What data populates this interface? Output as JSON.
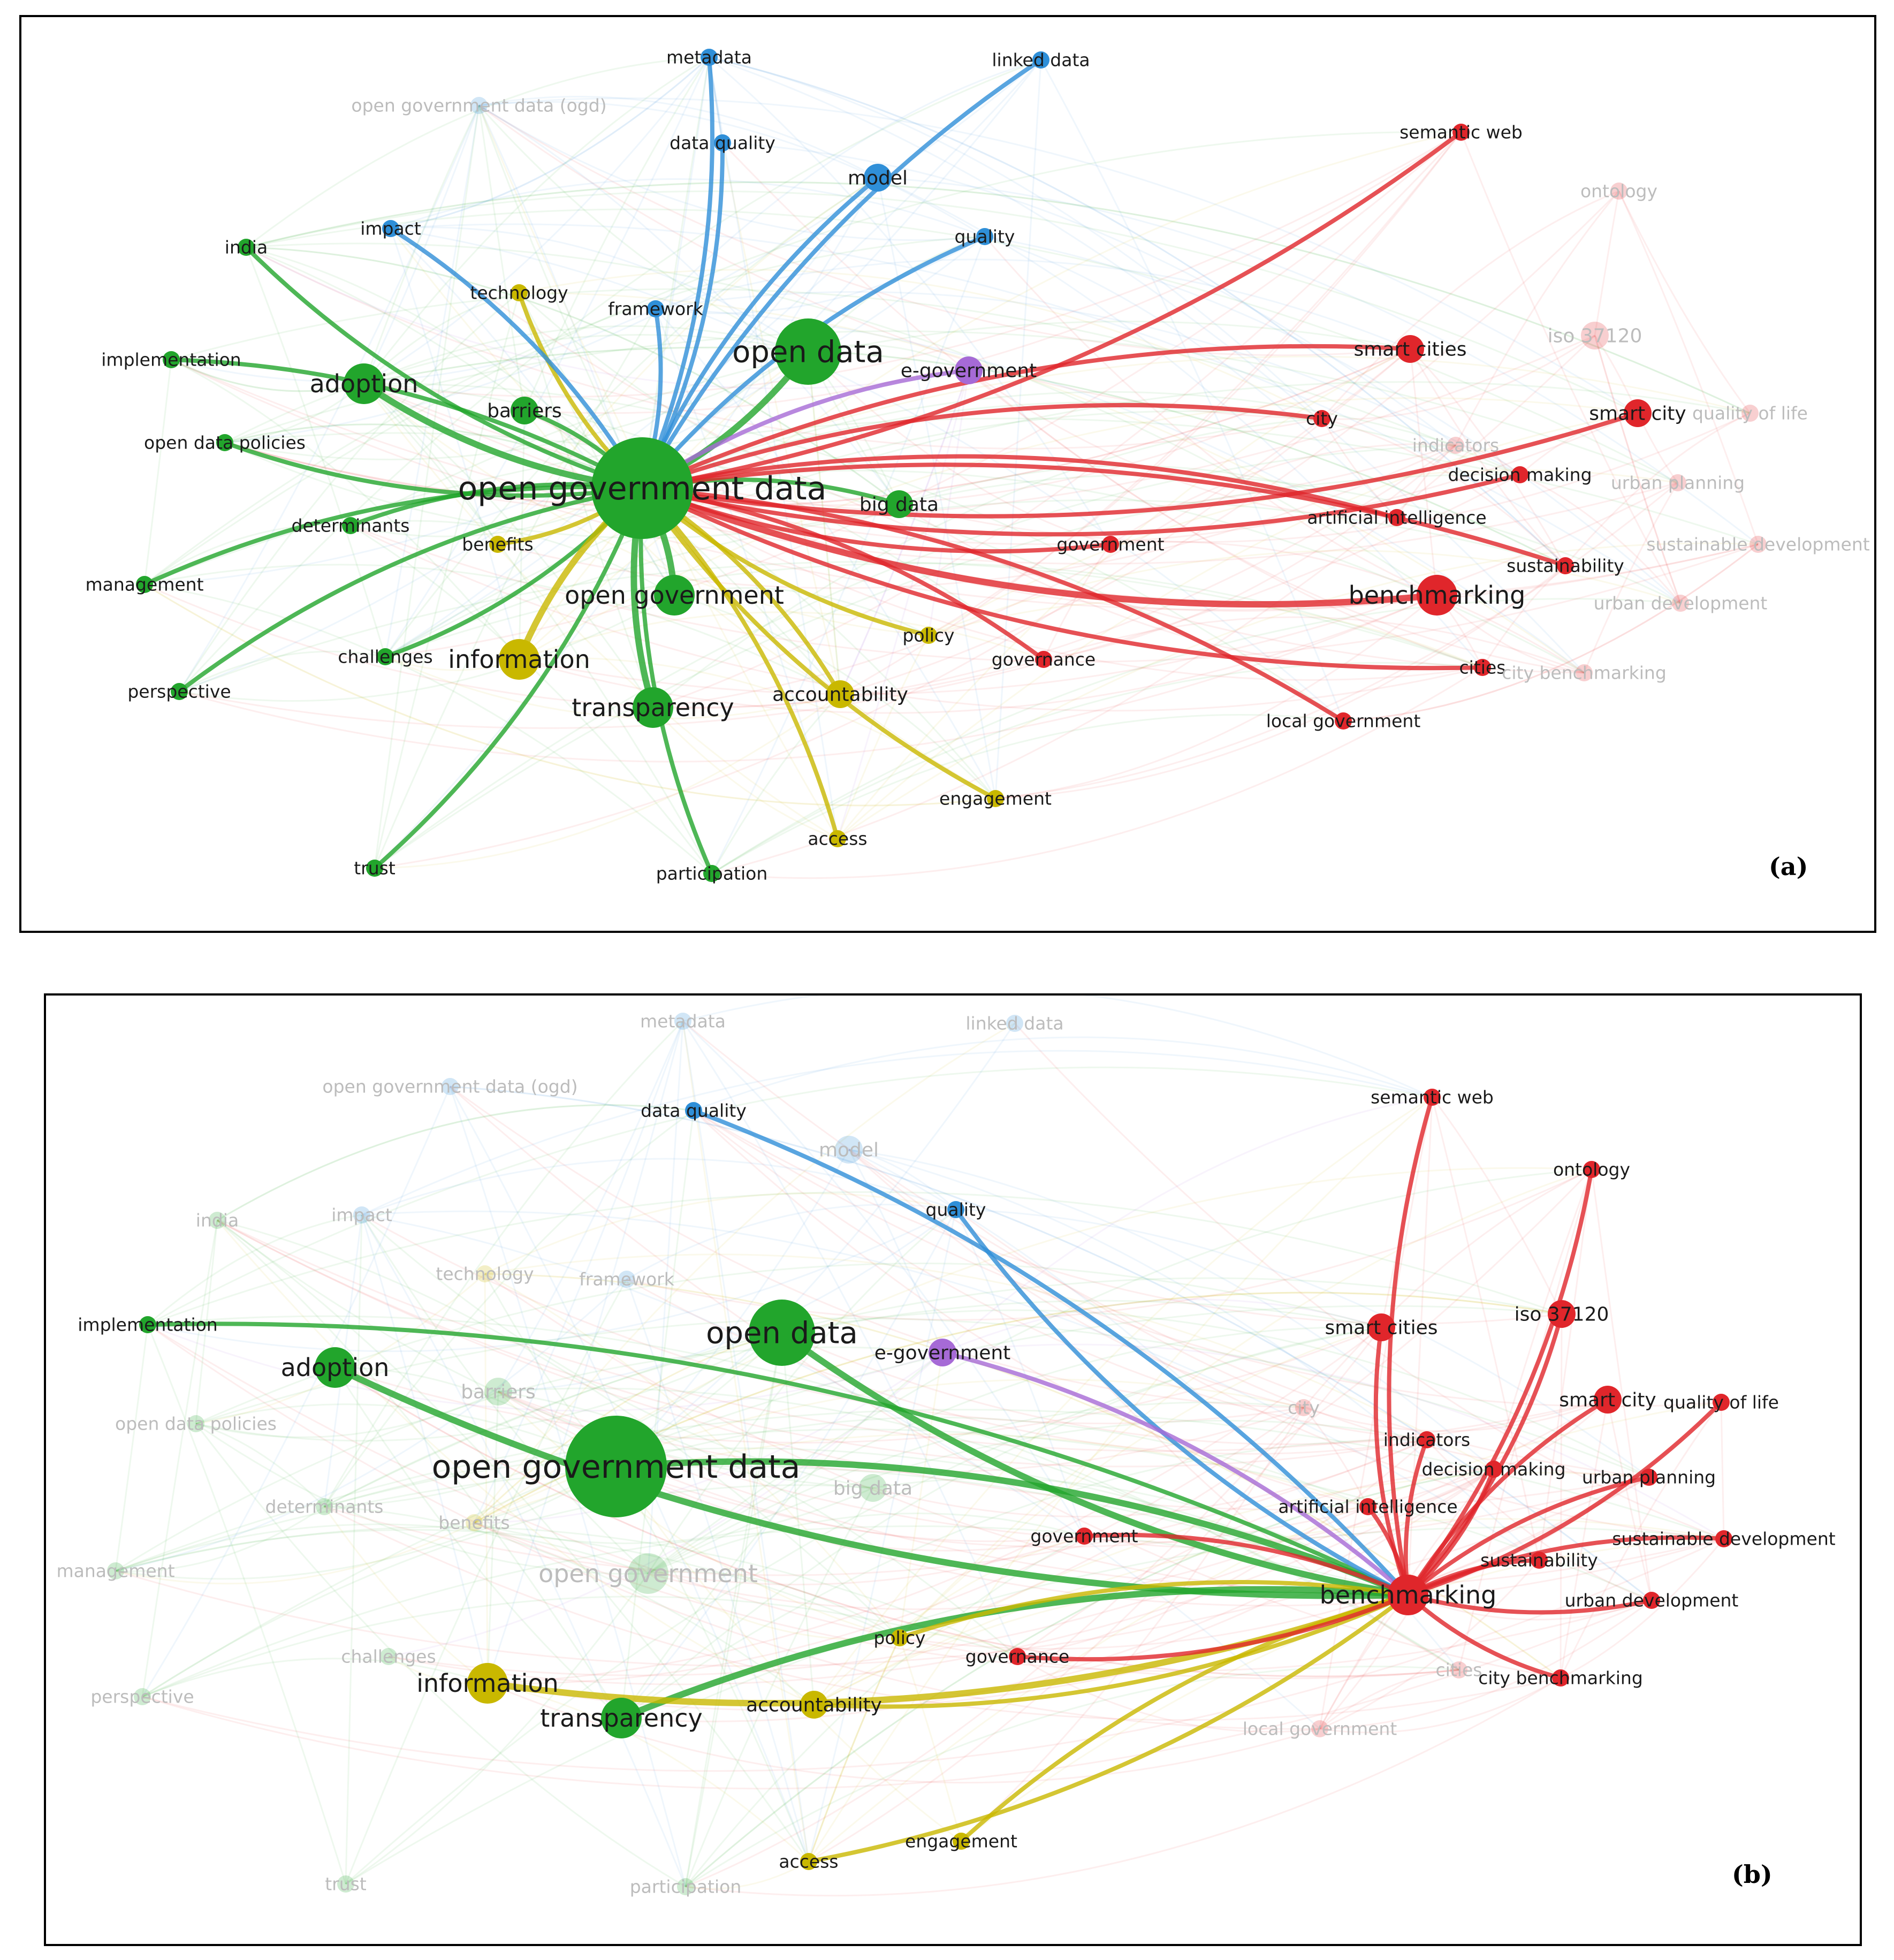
{
  "panels": [
    {
      "id": "a",
      "tag": "(a)",
      "colors": {
        "green": "#22a52c",
        "blue": "#2f8fd8",
        "red": "#e0262b",
        "yellow": "#c9b800",
        "purple": "#a66ad6"
      },
      "nodes": [
        {
          "key": "open_government_data",
          "label": "open government data",
          "cluster": "green",
          "size": "xl",
          "emph": true
        },
        {
          "key": "open_data",
          "label": "open data",
          "cluster": "green",
          "size": "l",
          "emph": true
        },
        {
          "key": "open_government",
          "label": "open government",
          "cluster": "green",
          "size": "m",
          "emph": true
        },
        {
          "key": "transparency",
          "label": "transparency",
          "cluster": "green",
          "size": "m",
          "emph": true
        },
        {
          "key": "adoption",
          "label": "adoption",
          "cluster": "green",
          "size": "m",
          "emph": true
        },
        {
          "key": "barriers",
          "label": "barriers",
          "cluster": "green",
          "size": "s",
          "emph": true
        },
        {
          "key": "india",
          "label": "india",
          "cluster": "green",
          "size": "xs",
          "emph": true
        },
        {
          "key": "implementation",
          "label": "implementation",
          "cluster": "green",
          "size": "xs",
          "emph": true
        },
        {
          "key": "open_data_policies",
          "label": "open data policies",
          "cluster": "green",
          "size": "xs",
          "emph": true
        },
        {
          "key": "determinants",
          "label": "determinants",
          "cluster": "green",
          "size": "xs",
          "emph": true
        },
        {
          "key": "benefits",
          "label": "benefits",
          "cluster": "yellow",
          "size": "xs",
          "emph": true
        },
        {
          "key": "management",
          "label": "management",
          "cluster": "green",
          "size": "xs",
          "emph": true
        },
        {
          "key": "challenges",
          "label": "challenges",
          "cluster": "green",
          "size": "xs",
          "emph": true
        },
        {
          "key": "perspective",
          "label": "perspective",
          "cluster": "green",
          "size": "xs",
          "emph": true
        },
        {
          "key": "trust",
          "label": "trust",
          "cluster": "green",
          "size": "xs",
          "emph": true
        },
        {
          "key": "participation",
          "label": "participation",
          "cluster": "green",
          "size": "xs",
          "emph": true
        },
        {
          "key": "big_data",
          "label": "big data",
          "cluster": "green",
          "size": "s",
          "emph": true
        },
        {
          "key": "information",
          "label": "information",
          "cluster": "yellow",
          "size": "m",
          "emph": true
        },
        {
          "key": "technology",
          "label": "technology",
          "cluster": "yellow",
          "size": "xs",
          "emph": true
        },
        {
          "key": "policy",
          "label": "policy",
          "cluster": "yellow",
          "size": "xs",
          "emph": true
        },
        {
          "key": "accountability",
          "label": "accountability",
          "cluster": "yellow",
          "size": "s",
          "emph": true
        },
        {
          "key": "engagement",
          "label": "engagement",
          "cluster": "yellow",
          "size": "xs",
          "emph": true
        },
        {
          "key": "access",
          "label": "access",
          "cluster": "yellow",
          "size": "xs",
          "emph": true
        },
        {
          "key": "metadata",
          "label": "metadata",
          "cluster": "blue",
          "size": "xs",
          "emph": true
        },
        {
          "key": "linked_data",
          "label": "linked data",
          "cluster": "blue",
          "size": "xs",
          "emph": true
        },
        {
          "key": "ogd",
          "label": "open government data (ogd)",
          "cluster": "blue",
          "size": "xs",
          "emph": false
        },
        {
          "key": "data_quality",
          "label": "data quality",
          "cluster": "blue",
          "size": "xs",
          "emph": true
        },
        {
          "key": "model",
          "label": "model",
          "cluster": "blue",
          "size": "s",
          "emph": true
        },
        {
          "key": "impact",
          "label": "impact",
          "cluster": "blue",
          "size": "xs",
          "emph": true
        },
        {
          "key": "quality",
          "label": "quality",
          "cluster": "blue",
          "size": "xs",
          "emph": true
        },
        {
          "key": "framework",
          "label": "framework",
          "cluster": "blue",
          "size": "xs",
          "emph": true
        },
        {
          "key": "e_government",
          "label": "e-government",
          "cluster": "purple",
          "size": "s",
          "emph": true
        },
        {
          "key": "semantic_web",
          "label": "semantic web",
          "cluster": "red",
          "size": "xs",
          "emph": true
        },
        {
          "key": "ontology",
          "label": "ontology",
          "cluster": "red",
          "size": "xs",
          "emph": false
        },
        {
          "key": "smart_cities",
          "label": "smart cities",
          "cluster": "red",
          "size": "s",
          "emph": true
        },
        {
          "key": "iso_37120",
          "label": "iso 37120",
          "cluster": "red",
          "size": "s",
          "emph": false
        },
        {
          "key": "smart_city",
          "label": "smart city",
          "cluster": "red",
          "size": "s",
          "emph": true
        },
        {
          "key": "quality_of_life",
          "label": "quality of life",
          "cluster": "red",
          "size": "xs",
          "emph": false
        },
        {
          "key": "city",
          "label": "city",
          "cluster": "red",
          "size": "xs",
          "emph": true
        },
        {
          "key": "indicators",
          "label": "indicators",
          "cluster": "red",
          "size": "xs",
          "emph": false
        },
        {
          "key": "decision_making",
          "label": "decision making",
          "cluster": "red",
          "size": "xs",
          "emph": true
        },
        {
          "key": "urban_planning",
          "label": "urban planning",
          "cluster": "red",
          "size": "xs",
          "emph": false
        },
        {
          "key": "artificial_intelligence",
          "label": "artificial intelligence",
          "cluster": "red",
          "size": "xs",
          "emph": true
        },
        {
          "key": "sustainable_development",
          "label": "sustainable development",
          "cluster": "red",
          "size": "xs",
          "emph": false
        },
        {
          "key": "government",
          "label": "government",
          "cluster": "red",
          "size": "xs",
          "emph": true
        },
        {
          "key": "sustainability",
          "label": "sustainability",
          "cluster": "red",
          "size": "xs",
          "emph": true
        },
        {
          "key": "benchmarking",
          "label": "benchmarking",
          "cluster": "red",
          "size": "m",
          "emph": true
        },
        {
          "key": "urban_development",
          "label": "urban development",
          "cluster": "red",
          "size": "xs",
          "emph": false
        },
        {
          "key": "governance",
          "label": "governance",
          "cluster": "red",
          "size": "xs",
          "emph": true
        },
        {
          "key": "cities",
          "label": "cities",
          "cluster": "red",
          "size": "xs",
          "emph": true
        },
        {
          "key": "city_benchmarking",
          "label": "city benchmarking",
          "cluster": "red",
          "size": "xs",
          "emph": false
        },
        {
          "key": "local_government",
          "label": "local government",
          "cluster": "red",
          "size": "xs",
          "emph": true
        }
      ],
      "hub": "open_government_data"
    },
    {
      "id": "b",
      "tag": "(b)",
      "colors": {
        "green": "#22a52c",
        "blue": "#2f8fd8",
        "red": "#e0262b",
        "yellow": "#c9b800",
        "purple": "#a66ad6"
      },
      "nodes": [
        {
          "key": "open_government_data",
          "label": "open government data",
          "cluster": "green",
          "size": "xl",
          "emph": true
        },
        {
          "key": "open_data",
          "label": "open data",
          "cluster": "green",
          "size": "l",
          "emph": true
        },
        {
          "key": "open_government",
          "label": "open government",
          "cluster": "green",
          "size": "m",
          "emph": false
        },
        {
          "key": "transparency",
          "label": "transparency",
          "cluster": "green",
          "size": "m",
          "emph": true
        },
        {
          "key": "adoption",
          "label": "adoption",
          "cluster": "green",
          "size": "m",
          "emph": true
        },
        {
          "key": "barriers",
          "label": "barriers",
          "cluster": "green",
          "size": "s",
          "emph": false
        },
        {
          "key": "india",
          "label": "india",
          "cluster": "green",
          "size": "xs",
          "emph": false
        },
        {
          "key": "implementation",
          "label": "implementation",
          "cluster": "green",
          "size": "xs",
          "emph": true
        },
        {
          "key": "open_data_policies",
          "label": "open data policies",
          "cluster": "green",
          "size": "xs",
          "emph": false
        },
        {
          "key": "determinants",
          "label": "determinants",
          "cluster": "green",
          "size": "xs",
          "emph": false
        },
        {
          "key": "benefits",
          "label": "benefits",
          "cluster": "yellow",
          "size": "xs",
          "emph": false
        },
        {
          "key": "management",
          "label": "management",
          "cluster": "green",
          "size": "xs",
          "emph": false
        },
        {
          "key": "challenges",
          "label": "challenges",
          "cluster": "green",
          "size": "xs",
          "emph": false
        },
        {
          "key": "perspective",
          "label": "perspective",
          "cluster": "green",
          "size": "xs",
          "emph": false
        },
        {
          "key": "trust",
          "label": "trust",
          "cluster": "green",
          "size": "xs",
          "emph": false
        },
        {
          "key": "participation",
          "label": "participation",
          "cluster": "green",
          "size": "xs",
          "emph": false
        },
        {
          "key": "big_data",
          "label": "big data",
          "cluster": "green",
          "size": "s",
          "emph": false
        },
        {
          "key": "information",
          "label": "information",
          "cluster": "yellow",
          "size": "m",
          "emph": true
        },
        {
          "key": "technology",
          "label": "technology",
          "cluster": "yellow",
          "size": "xs",
          "emph": false
        },
        {
          "key": "policy",
          "label": "policy",
          "cluster": "yellow",
          "size": "xs",
          "emph": true
        },
        {
          "key": "accountability",
          "label": "accountability",
          "cluster": "yellow",
          "size": "s",
          "emph": true
        },
        {
          "key": "engagement",
          "label": "engagement",
          "cluster": "yellow",
          "size": "xs",
          "emph": true
        },
        {
          "key": "access",
          "label": "access",
          "cluster": "yellow",
          "size": "xs",
          "emph": true
        },
        {
          "key": "metadata",
          "label": "metadata",
          "cluster": "blue",
          "size": "xs",
          "emph": false
        },
        {
          "key": "linked_data",
          "label": "linked data",
          "cluster": "blue",
          "size": "xs",
          "emph": false
        },
        {
          "key": "ogd",
          "label": "open government data (ogd)",
          "cluster": "blue",
          "size": "xs",
          "emph": false
        },
        {
          "key": "data_quality",
          "label": "data quality",
          "cluster": "blue",
          "size": "xs",
          "emph": true
        },
        {
          "key": "model",
          "label": "model",
          "cluster": "blue",
          "size": "s",
          "emph": false
        },
        {
          "key": "impact",
          "label": "impact",
          "cluster": "blue",
          "size": "xs",
          "emph": false
        },
        {
          "key": "quality",
          "label": "quality",
          "cluster": "blue",
          "size": "xs",
          "emph": true
        },
        {
          "key": "framework",
          "label": "framework",
          "cluster": "blue",
          "size": "xs",
          "emph": false
        },
        {
          "key": "e_government",
          "label": "e-government",
          "cluster": "purple",
          "size": "s",
          "emph": true
        },
        {
          "key": "semantic_web",
          "label": "semantic web",
          "cluster": "red",
          "size": "xs",
          "emph": true
        },
        {
          "key": "ontology",
          "label": "ontology",
          "cluster": "red",
          "size": "xs",
          "emph": true
        },
        {
          "key": "smart_cities",
          "label": "smart cities",
          "cluster": "red",
          "size": "s",
          "emph": true
        },
        {
          "key": "iso_37120",
          "label": "iso 37120",
          "cluster": "red",
          "size": "s",
          "emph": true
        },
        {
          "key": "smart_city",
          "label": "smart city",
          "cluster": "red",
          "size": "s",
          "emph": true
        },
        {
          "key": "quality_of_life",
          "label": "quality of life",
          "cluster": "red",
          "size": "xs",
          "emph": true
        },
        {
          "key": "city",
          "label": "city",
          "cluster": "red",
          "size": "xs",
          "emph": false
        },
        {
          "key": "indicators",
          "label": "indicators",
          "cluster": "red",
          "size": "xs",
          "emph": true
        },
        {
          "key": "decision_making",
          "label": "decision making",
          "cluster": "red",
          "size": "xs",
          "emph": true
        },
        {
          "key": "urban_planning",
          "label": "urban planning",
          "cluster": "red",
          "size": "xs",
          "emph": true
        },
        {
          "key": "artificial_intelligence",
          "label": "artificial intelligence",
          "cluster": "red",
          "size": "xs",
          "emph": true
        },
        {
          "key": "sustainable_development",
          "label": "sustainable development",
          "cluster": "red",
          "size": "xs",
          "emph": true
        },
        {
          "key": "government",
          "label": "government",
          "cluster": "red",
          "size": "xs",
          "emph": true
        },
        {
          "key": "sustainability",
          "label": "sustainability",
          "cluster": "red",
          "size": "xs",
          "emph": true
        },
        {
          "key": "benchmarking",
          "label": "benchmarking",
          "cluster": "red",
          "size": "m",
          "emph": true
        },
        {
          "key": "urban_development",
          "label": "urban development",
          "cluster": "red",
          "size": "xs",
          "emph": true
        },
        {
          "key": "governance",
          "label": "governance",
          "cluster": "red",
          "size": "xs",
          "emph": true
        },
        {
          "key": "cities",
          "label": "cities",
          "cluster": "red",
          "size": "xs",
          "emph": false
        },
        {
          "key": "city_benchmarking",
          "label": "city benchmarking",
          "cluster": "red",
          "size": "xs",
          "emph": true
        },
        {
          "key": "local_government",
          "label": "local government",
          "cluster": "red",
          "size": "xs",
          "emph": false
        }
      ],
      "hub": "benchmarking"
    }
  ]
}
